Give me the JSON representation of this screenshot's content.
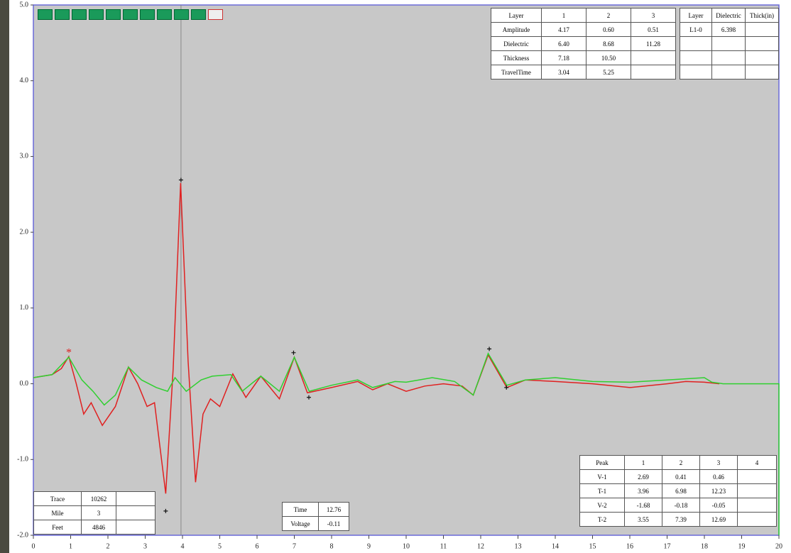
{
  "chart_data": {
    "type": "line",
    "series": [
      {
        "color": "#e02020",
        "x": [
          0,
          0.25,
          0.5,
          0.75,
          0.95,
          1.15,
          1.35,
          1.55,
          1.85,
          2.2,
          2.55,
          2.8,
          3.05,
          3.25,
          3.55,
          3.75,
          3.95,
          4.15,
          4.35,
          4.55,
          4.75,
          5.0,
          5.35,
          5.7,
          6.1,
          6.6,
          7.0,
          7.35,
          8.0,
          8.7,
          9.1,
          9.5,
          10.0,
          10.5,
          11.0,
          11.5,
          11.8,
          12.2,
          12.7,
          13.2,
          14.0,
          15.0,
          16.0,
          17.0,
          17.5,
          18.0,
          18.4
        ],
        "values": [
          0.08,
          0.1,
          0.12,
          0.2,
          0.36,
          0.0,
          -0.4,
          -0.25,
          -0.55,
          -0.3,
          0.22,
          0.0,
          -0.3,
          -0.25,
          -1.45,
          0.2,
          2.65,
          0.3,
          -1.3,
          -0.4,
          -0.2,
          -0.3,
          0.13,
          -0.18,
          0.1,
          -0.2,
          0.35,
          -0.12,
          -0.05,
          0.03,
          -0.08,
          0.0,
          -0.1,
          -0.03,
          0.0,
          -0.03,
          -0.15,
          0.38,
          -0.05,
          0.05,
          0.03,
          0.0,
          -0.05,
          0.0,
          0.03,
          0.02,
          0.0
        ]
      },
      {
        "color": "#30d030",
        "x": [
          0,
          0.5,
          0.95,
          1.3,
          1.6,
          1.9,
          2.2,
          2.55,
          2.9,
          3.3,
          3.6,
          3.8,
          4.1,
          4.5,
          4.8,
          5.3,
          5.6,
          6.1,
          6.6,
          7.0,
          7.4,
          8.0,
          8.7,
          9.1,
          9.7,
          10.0,
          10.7,
          11.3,
          11.8,
          12.2,
          12.7,
          13.2,
          14.0,
          15.0,
          16.0,
          17.0,
          18.0,
          18.2,
          18.5,
          20,
          20
        ],
        "values": [
          0.08,
          0.12,
          0.35,
          0.05,
          -0.1,
          -0.28,
          -0.15,
          0.22,
          0.05,
          -0.05,
          -0.1,
          0.08,
          -0.1,
          0.05,
          0.1,
          0.12,
          -0.1,
          0.1,
          -0.1,
          0.35,
          -0.1,
          -0.02,
          0.05,
          -0.05,
          0.03,
          0.02,
          0.08,
          0.03,
          -0.15,
          0.4,
          -0.02,
          0.05,
          0.08,
          0.03,
          0.02,
          0.05,
          0.08,
          0.02,
          0,
          0,
          -2
        ]
      }
    ],
    "xlim": [
      0,
      20
    ],
    "xticks": [
      0,
      1,
      2,
      3,
      4,
      5,
      6,
      7,
      8,
      9,
      10,
      11,
      12,
      13,
      14,
      15,
      16,
      17,
      18,
      19,
      20
    ],
    "ylim": [
      -2,
      5
    ],
    "yticks": [
      {
        "value": 5,
        "label": "5.0"
      },
      {
        "value": 4,
        "label": "4.0"
      },
      {
        "value": 3,
        "label": "3.0"
      },
      {
        "value": 2,
        "label": "2.0"
      },
      {
        "value": 1,
        "label": "1.0"
      },
      {
        "value": 0,
        "label": "0.0"
      },
      {
        "value": -1,
        "label": "-1.0"
      },
      {
        "value": -2,
        "label": "-2.0"
      }
    ]
  },
  "layer_table": {
    "header": [
      "Layer",
      "1",
      "2",
      "3"
    ],
    "rows": [
      [
        "Amplitude",
        "4.17",
        "0.60",
        "0.51"
      ],
      [
        "Dielectric",
        "6.40",
        "8.68",
        "11.28"
      ],
      [
        "Thickness",
        "7.18",
        "10.50",
        null
      ],
      [
        "TravelTime",
        "3.04",
        "5.25",
        null
      ]
    ]
  },
  "dielectric_table": {
    "header": [
      "Layer",
      "Dielectric",
      "Thick(in)"
    ],
    "rows": [
      [
        "L1-0",
        "6.398",
        null
      ],
      [
        null,
        null,
        null
      ],
      [
        null,
        null,
        null
      ],
      [
        null,
        null,
        null
      ]
    ]
  },
  "peak_table": {
    "header": [
      "Peak",
      "1",
      "2",
      "3",
      "4"
    ],
    "rows": [
      [
        "V-1",
        2.69,
        0.41,
        0.46,
        null
      ],
      [
        "T-1",
        3.96,
        6.98,
        12.23,
        null
      ],
      [
        "V-2",
        -1.68,
        -0.18,
        -0.05,
        null
      ],
      [
        "T-2",
        3.55,
        7.39,
        12.69,
        null
      ]
    ]
  },
  "location_table": {
    "rows": [
      [
        "Trace",
        "10262",
        null
      ],
      [
        "Mile",
        "3",
        null
      ],
      [
        "Feet",
        "4846",
        null
      ]
    ]
  },
  "cursor_table": {
    "rows": [
      [
        "Time",
        "12.76"
      ],
      [
        "Voltage",
        "-0.11"
      ]
    ]
  }
}
